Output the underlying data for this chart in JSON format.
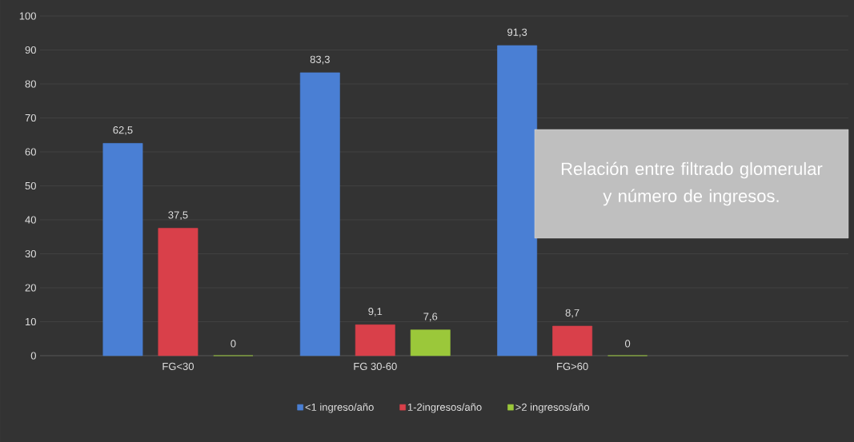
{
  "chart_data": {
    "type": "bar",
    "title": "Relación entre filtrado glomerular y número de ingresos.",
    "categories": [
      "FG<30",
      "FG 30-60",
      "FG>60"
    ],
    "series": [
      {
        "name": "<1 ingreso/año",
        "color": "#4a7fd4",
        "values": [
          62.5,
          83.3,
          91.3
        ],
        "value_labels": [
          "62,5",
          "83,3",
          "91,3"
        ]
      },
      {
        "name": "1-2ingresos/año",
        "color": "#d9404a",
        "values": [
          37.5,
          9.1,
          8.7
        ],
        "value_labels": [
          "37,5",
          "9,1",
          "8,7"
        ]
      },
      {
        "name": ">2 ingresos/año",
        "color": "#9bc83a",
        "values": [
          0,
          7.6,
          0
        ],
        "value_labels": [
          "0",
          "7,6",
          "0"
        ]
      }
    ],
    "ylim": [
      0,
      100
    ],
    "yticks": [
      0,
      10,
      20,
      30,
      40,
      50,
      60,
      70,
      80,
      90,
      100
    ],
    "grid": "y",
    "legend": "bottom"
  }
}
